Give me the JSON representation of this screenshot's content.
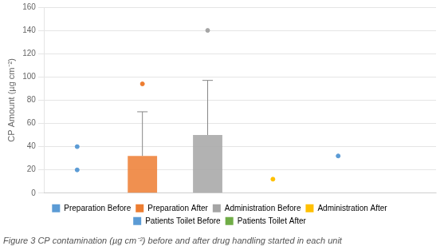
{
  "chart_data": {
    "type": "bar",
    "title": "Figure 3 CP contamination (µg cm⁻²) before and after drug handling started in each unit",
    "categories": [
      "Preparation Before",
      "Preparation After",
      "Administration Before",
      "Administration After",
      "Patients Toilet Before",
      "Patients Toilet After"
    ],
    "values": [
      0.3,
      32,
      50,
      0.3,
      0.3,
      0.3
    ],
    "colors": [
      "#5B9BD5",
      "#ED7D31",
      "#A5A5A5",
      "#FFC000",
      "#5B9BD5",
      "#70AD47"
    ],
    "whisker_high": [
      null,
      70,
      97,
      null,
      null,
      null
    ],
    "outliers": [
      [
        20,
        40
      ],
      [
        94
      ],
      [
        140
      ],
      [
        12
      ],
      [
        32
      ],
      []
    ],
    "ylabel": "CP Amount (µg cm⁻²)",
    "ylim": [
      0,
      160
    ],
    "yticks": [
      0,
      20,
      40,
      60,
      80,
      100,
      120,
      140,
      160
    ],
    "grid": true,
    "legend": "bottom",
    "tick_labels": "y"
  }
}
